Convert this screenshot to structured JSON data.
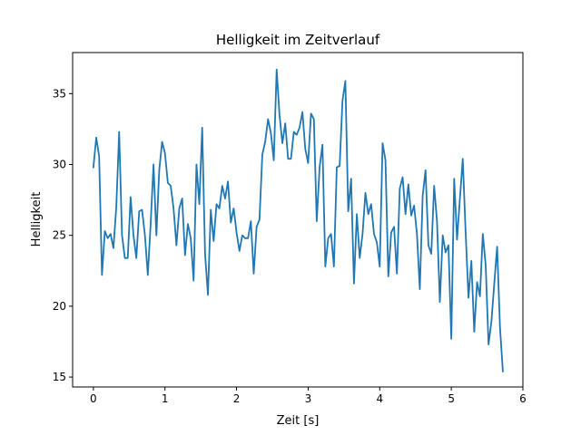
{
  "chart_data": {
    "type": "line",
    "title": "Helligkeit im Zeitverlauf",
    "xlabel": "Zeit [s]",
    "ylabel": "Helligkeit",
    "xlim": [
      -0.29,
      6.0
    ],
    "ylim": [
      14.3,
      37.9
    ],
    "xticks": [
      0,
      1,
      2,
      3,
      4,
      5,
      6
    ],
    "yticks": [
      15,
      20,
      25,
      30,
      35
    ],
    "xtick_labels": [
      "0",
      "1",
      "2",
      "3",
      "4",
      "5",
      "6"
    ],
    "ytick_labels": [
      "15",
      "20",
      "25",
      "30",
      "35"
    ],
    "grid": false,
    "line_color": "#1f77b4",
    "series": [
      {
        "name": "Helligkeit",
        "x": [
          0.0,
          0.04,
          0.08,
          0.12,
          0.16,
          0.2,
          0.24,
          0.28,
          0.32,
          0.36,
          0.4,
          0.44,
          0.48,
          0.52,
          0.56,
          0.6,
          0.64,
          0.68,
          0.72,
          0.76,
          0.8,
          0.84,
          0.88,
          0.92,
          0.96,
          1.0,
          1.04,
          1.08,
          1.12,
          1.16,
          1.2,
          1.24,
          1.28,
          1.32,
          1.36,
          1.4,
          1.44,
          1.48,
          1.52,
          1.56,
          1.6,
          1.64,
          1.68,
          1.72,
          1.76,
          1.8,
          1.84,
          1.88,
          1.92,
          1.96,
          2.0,
          2.04,
          2.08,
          2.12,
          2.16,
          2.2,
          2.24,
          2.28,
          2.32,
          2.36,
          2.4,
          2.44,
          2.48,
          2.52,
          2.56,
          2.6,
          2.64,
          2.68,
          2.72,
          2.76,
          2.8,
          2.84,
          2.88,
          2.92,
          2.96,
          3.0,
          3.04,
          3.08,
          3.12,
          3.16,
          3.2,
          3.24,
          3.28,
          3.32,
          3.36,
          3.4,
          3.44,
          3.48,
          3.52,
          3.56,
          3.6,
          3.64,
          3.68,
          3.72,
          3.76,
          3.8,
          3.84,
          3.88,
          3.92,
          3.96,
          4.0,
          4.04,
          4.08,
          4.12,
          4.16,
          4.2,
          4.24,
          4.28,
          4.32,
          4.36,
          4.4,
          4.44,
          4.48,
          4.52,
          4.56,
          4.6,
          4.64,
          4.68,
          4.72,
          4.76,
          4.8,
          4.84,
          4.88,
          4.92,
          4.96,
          5.0,
          5.04,
          5.08,
          5.12,
          5.16,
          5.2,
          5.24,
          5.28,
          5.32,
          5.36,
          5.4,
          5.44,
          5.48,
          5.52,
          5.56,
          5.6,
          5.64,
          5.68,
          5.72
        ],
        "y": [
          29.8,
          31.9,
          30.6,
          22.2,
          25.3,
          24.8,
          25.1,
          24.1,
          27.0,
          32.3,
          25.0,
          23.4,
          23.4,
          27.7,
          25.0,
          23.4,
          26.7,
          26.8,
          25.0,
          22.2,
          25.8,
          30.0,
          25.0,
          29.6,
          31.6,
          30.8,
          28.7,
          28.5,
          26.9,
          24.3,
          26.9,
          27.6,
          23.6,
          25.8,
          24.8,
          21.8,
          30.0,
          27.2,
          32.6,
          23.7,
          20.8,
          26.8,
          24.6,
          27.2,
          26.9,
          28.5,
          27.6,
          28.8,
          25.9,
          26.9,
          25.2,
          23.9,
          25.0,
          24.8,
          24.8,
          26.0,
          22.3,
          25.6,
          26.1,
          30.7,
          31.6,
          33.2,
          32.2,
          30.3,
          36.7,
          33.5,
          31.5,
          32.9,
          30.4,
          30.4,
          32.3,
          32.1,
          32.6,
          33.7,
          31.1,
          30.1,
          33.6,
          33.2,
          26.0,
          29.8,
          31.4,
          22.8,
          24.8,
          25.1,
          22.8,
          29.8,
          29.9,
          34.5,
          35.9,
          26.7,
          29.0,
          21.6,
          26.5,
          23.4,
          25.1,
          28.0,
          26.5,
          27.2,
          25.1,
          24.5,
          22.8,
          31.5,
          30.3,
          22.1,
          25.2,
          25.6,
          22.3,
          28.3,
          29.1,
          26.5,
          28.6,
          26.4,
          27.1,
          25.1,
          21.2,
          27.8,
          29.6,
          24.3,
          23.7,
          28.5,
          26.0,
          20.3,
          25.0,
          23.8,
          24.3,
          17.7,
          29.0,
          24.7,
          27.6,
          30.4,
          25.2,
          20.6,
          23.2,
          18.2,
          21.7,
          20.7,
          25.1,
          22.9,
          17.3,
          18.9,
          21.6,
          24.2,
          18.5,
          15.4
        ]
      }
    ]
  }
}
